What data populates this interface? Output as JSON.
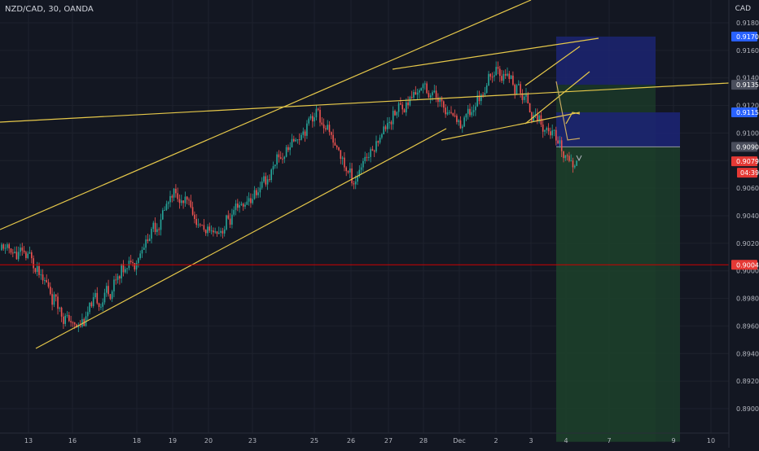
{
  "header": {
    "symbol_line": "NZD/CAD, 30, OANDA",
    "currency": "CAD"
  },
  "colors": {
    "background": "#131722",
    "up": "#26a69a",
    "down": "#ef5350",
    "trendline": "#e6c84a",
    "support_line": "#d00000",
    "stop_zone": "#1c2472",
    "target_zone": "#1c3d2a",
    "tag_blue": "#2962ff",
    "tag_red": "#e53935",
    "tag_gray": "#4a4e5c"
  },
  "chart_data": {
    "type": "candlestick",
    "ylim": [
      0.888,
      0.919
    ],
    "y_ticks": [
      "0.91800",
      "0.91600",
      "0.91400",
      "0.91200",
      "0.91000",
      "0.90800",
      "0.90600",
      "0.90400",
      "0.90200",
      "0.90000",
      "0.89800",
      "0.89600",
      "0.89400",
      "0.89200",
      "0.89000"
    ],
    "x_ticks": [
      "13",
      "16",
      "18",
      "19",
      "20",
      "23",
      "25",
      "26",
      "27",
      "28",
      "Dec",
      "2",
      "3",
      "4",
      "7",
      "9",
      "10"
    ],
    "price_tags": [
      {
        "value": 0.917,
        "label": "0.91700",
        "kind": "blue"
      },
      {
        "value": 0.9135,
        "label": "0.91350",
        "kind": "gray"
      },
      {
        "value": 0.9115,
        "label": "0.91150",
        "kind": "blue"
      },
      {
        "value": 0.909,
        "label": "0.90900",
        "kind": "gray"
      },
      {
        "value": 0.90795,
        "label": "0.90795",
        "kind": "red"
      },
      {
        "value": 0.90044,
        "label": "0.90044",
        "kind": "red"
      }
    ],
    "countdown": "04:39",
    "key_points": [
      {
        "x": "13",
        "y": 0.901
      },
      {
        "x": "16",
        "y": 0.8957
      },
      {
        "x": "18",
        "y": 0.9013
      },
      {
        "x": "19",
        "y": 0.9057
      },
      {
        "x": "20",
        "y": 0.9025
      },
      {
        "x": "23",
        "y": 0.9055
      },
      {
        "x": "25",
        "y": 0.9118
      },
      {
        "x": "26",
        "y": 0.9065
      },
      {
        "x": "27",
        "y": 0.9112
      },
      {
        "x": "28",
        "y": 0.9135
      },
      {
        "x": "Dec",
        "y": 0.9105
      },
      {
        "x": "2",
        "y": 0.9148
      },
      {
        "x": "3",
        "y": 0.9118
      },
      {
        "x": "4",
        "y": 0.90795
      }
    ],
    "support_level": 0.90044,
    "position": {
      "entry": 0.909,
      "stop": 0.9115,
      "target": 0.8876
    }
  }
}
